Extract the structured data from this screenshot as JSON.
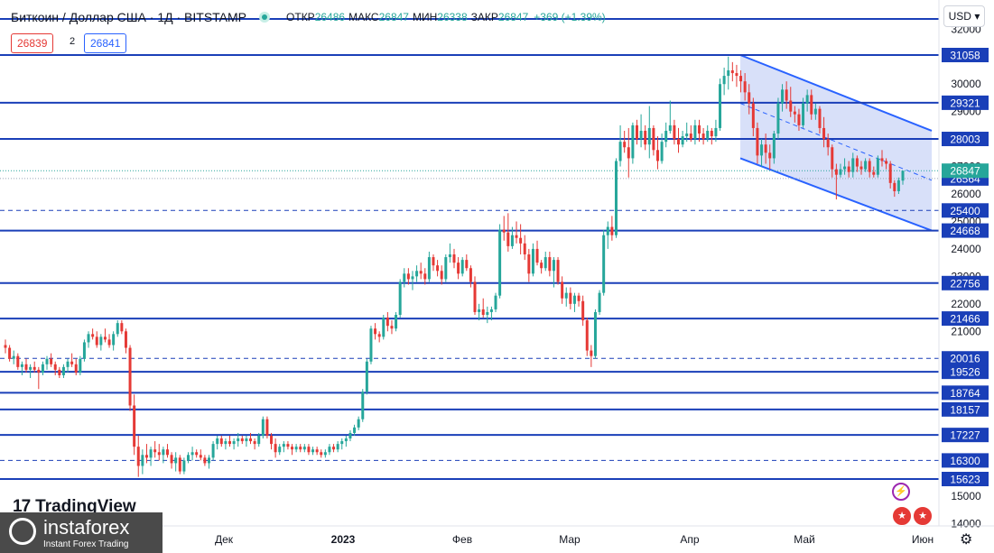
{
  "header": {
    "title": "Биткоин / Доллар США · 1Д · BITSTAMP",
    "open_label": "ОТКР",
    "open": "26486",
    "high_label": "МАКС",
    "high": "26847",
    "low_label": "МИН",
    "low": "26338",
    "close_label": "ЗАКР",
    "close": "26847",
    "change": "+369 (+1.39%)"
  },
  "trade": {
    "sell": "26839",
    "qty": "2",
    "buy": "26841"
  },
  "currency": "USD",
  "branding": {
    "tradingview": "TradingView",
    "instaforex": "instaforex",
    "instaforex_tag": "Instant Forex Trading"
  },
  "colors": {
    "up": "#26a69a",
    "down": "#e53935",
    "level": "#1a3fb8",
    "channel_fill": "#c8d3f7",
    "price_label_bg": "#1a3fb8",
    "current_price_bg": "#26a69a"
  },
  "chart_data": {
    "type": "candlestick",
    "y_axis": {
      "min": 14000,
      "max": 32000,
      "ticks": [
        14000,
        15000,
        20000,
        21000,
        22000,
        23000,
        24000,
        25000,
        26000,
        27000,
        29000,
        30000,
        32000
      ]
    },
    "x_axis": {
      "labels": [
        "Дек",
        "2023",
        "Фев",
        "Мар",
        "Апр",
        "Май",
        "Июн"
      ]
    },
    "current_price": 26847,
    "solid_levels": [
      31058,
      29321,
      28003,
      26564,
      24668,
      22756,
      21466,
      19526,
      18764,
      18157,
      17227,
      15623
    ],
    "dashed_levels": [
      25400,
      20016,
      16300
    ],
    "channel": {
      "upper": [
        31058,
        28300
      ],
      "lower": [
        27300,
        24668
      ],
      "mid": [
        29300,
        26500
      ]
    },
    "ohlc": [
      [
        20500,
        20700,
        20200,
        20400
      ],
      [
        20400,
        20500,
        19900,
        20000
      ],
      [
        20000,
        20300,
        19800,
        20100
      ],
      [
        20100,
        20200,
        19600,
        19700
      ],
      [
        19700,
        19900,
        19400,
        19800
      ],
      [
        19800,
        20000,
        19500,
        19600
      ],
      [
        19600,
        19800,
        19300,
        19700
      ],
      [
        19700,
        19900,
        19500,
        19600
      ],
      [
        19600,
        19700,
        18900,
        19500
      ],
      [
        19500,
        19900,
        19400,
        19800
      ],
      [
        19800,
        20100,
        19600,
        20000
      ],
      [
        20000,
        20200,
        19700,
        19800
      ],
      [
        19800,
        19900,
        19400,
        19600
      ],
      [
        19600,
        19700,
        19300,
        19400
      ],
      [
        19400,
        19800,
        19300,
        19700
      ],
      [
        19700,
        20000,
        19500,
        19900
      ],
      [
        19900,
        20200,
        19700,
        19800
      ],
      [
        19800,
        20000,
        19400,
        19500
      ],
      [
        19500,
        20100,
        19400,
        20000
      ],
      [
        20000,
        20700,
        19900,
        20600
      ],
      [
        20600,
        21000,
        20400,
        20900
      ],
      [
        20900,
        21100,
        20700,
        20800
      ],
      [
        20800,
        21000,
        20400,
        20500
      ],
      [
        20500,
        20900,
        20300,
        20800
      ],
      [
        20800,
        21100,
        20600,
        20700
      ],
      [
        20700,
        20900,
        20400,
        20500
      ],
      [
        20500,
        21000,
        20300,
        20900
      ],
      [
        20900,
        21400,
        20800,
        21300
      ],
      [
        21300,
        21400,
        20900,
        21000
      ],
      [
        21000,
        21100,
        20200,
        20400
      ],
      [
        20400,
        20500,
        18100,
        18300
      ],
      [
        18300,
        18700,
        16500,
        16800
      ],
      [
        16800,
        17200,
        15700,
        16100
      ],
      [
        16100,
        16700,
        15800,
        16500
      ],
      [
        16500,
        16900,
        16200,
        16400
      ],
      [
        16400,
        16800,
        16100,
        16700
      ],
      [
        16700,
        17000,
        16400,
        16600
      ],
      [
        16600,
        16900,
        16300,
        16500
      ],
      [
        16500,
        16800,
        16200,
        16700
      ],
      [
        16700,
        16900,
        16400,
        16500
      ],
      [
        16500,
        16600,
        16000,
        16200
      ],
      [
        16200,
        16600,
        15900,
        16400
      ],
      [
        16400,
        16500,
        15800,
        15900
      ],
      [
        15900,
        16400,
        15800,
        16300
      ],
      [
        16300,
        16600,
        16200,
        16500
      ],
      [
        16500,
        16800,
        16300,
        16600
      ],
      [
        16600,
        16700,
        16400,
        16500
      ],
      [
        16500,
        16700,
        16300,
        16400
      ],
      [
        16400,
        16500,
        16100,
        16200
      ],
      [
        16200,
        16500,
        16000,
        16400
      ],
      [
        16400,
        17000,
        16300,
        16900
      ],
      [
        16900,
        17200,
        16700,
        17100
      ],
      [
        17100,
        17200,
        16800,
        16900
      ],
      [
        16900,
        17100,
        16700,
        17000
      ],
      [
        17000,
        17200,
        16800,
        16900
      ],
      [
        16900,
        17100,
        16700,
        17000
      ],
      [
        17000,
        17300,
        16800,
        17100
      ],
      [
        17100,
        17200,
        16900,
        17000
      ],
      [
        17000,
        17200,
        16800,
        17100
      ],
      [
        17100,
        17300,
        16900,
        17000
      ],
      [
        17000,
        17100,
        16700,
        16900
      ],
      [
        16900,
        17300,
        16800,
        17200
      ],
      [
        17200,
        17900,
        17100,
        17800
      ],
      [
        17800,
        17900,
        17100,
        17200
      ],
      [
        17200,
        17300,
        16700,
        16900
      ],
      [
        16900,
        17100,
        16400,
        16600
      ],
      [
        16600,
        16900,
        16500,
        16800
      ],
      [
        16800,
        17000,
        16600,
        16900
      ],
      [
        16900,
        17000,
        16700,
        16800
      ],
      [
        16800,
        16900,
        16500,
        16700
      ],
      [
        16700,
        16900,
        16600,
        16800
      ],
      [
        16800,
        16900,
        16600,
        16700
      ],
      [
        16700,
        16900,
        16600,
        16800
      ],
      [
        16800,
        16900,
        16500,
        16600
      ],
      [
        16600,
        16800,
        16500,
        16700
      ],
      [
        16700,
        16800,
        16500,
        16600
      ],
      [
        16600,
        16700,
        16400,
        16500
      ],
      [
        16500,
        16700,
        16400,
        16600
      ],
      [
        16600,
        16900,
        16500,
        16800
      ],
      [
        16800,
        16900,
        16600,
        16700
      ],
      [
        16700,
        17000,
        16600,
        16900
      ],
      [
        16900,
        17100,
        16700,
        17000
      ],
      [
        17000,
        17200,
        16800,
        17100
      ],
      [
        17100,
        17400,
        17000,
        17300
      ],
      [
        17300,
        17600,
        17200,
        17500
      ],
      [
        17500,
        17900,
        17400,
        17800
      ],
      [
        17800,
        18900,
        17700,
        18800
      ],
      [
        18800,
        20000,
        18700,
        19900
      ],
      [
        19900,
        21200,
        19800,
        21100
      ],
      [
        21100,
        21300,
        20700,
        20900
      ],
      [
        20900,
        21000,
        20600,
        20800
      ],
      [
        20800,
        21600,
        20700,
        21500
      ],
      [
        21500,
        21700,
        21000,
        21200
      ],
      [
        21200,
        21400,
        20900,
        21100
      ],
      [
        21100,
        21700,
        21000,
        21600
      ],
      [
        21600,
        22900,
        21500,
        22800
      ],
      [
        22800,
        23300,
        22600,
        23100
      ],
      [
        23100,
        23300,
        22700,
        22900
      ],
      [
        22900,
        23200,
        22500,
        23000
      ],
      [
        23000,
        23400,
        22800,
        23200
      ],
      [
        23200,
        23500,
        22900,
        23100
      ],
      [
        23100,
        23300,
        22700,
        22900
      ],
      [
        22900,
        23900,
        22800,
        23700
      ],
      [
        23700,
        23800,
        23200,
        23400
      ],
      [
        23400,
        23600,
        23000,
        23200
      ],
      [
        23200,
        23400,
        22700,
        22900
      ],
      [
        22900,
        23800,
        22800,
        23700
      ],
      [
        23700,
        24200,
        23500,
        23800
      ],
      [
        23800,
        24000,
        23300,
        23500
      ],
      [
        23500,
        23700,
        22900,
        23100
      ],
      [
        23100,
        23700,
        23000,
        23600
      ],
      [
        23600,
        23800,
        23200,
        23300
      ],
      [
        23300,
        23400,
        22600,
        22800
      ],
      [
        22800,
        23000,
        21600,
        21700
      ],
      [
        21700,
        22000,
        21400,
        21800
      ],
      [
        21800,
        22200,
        21500,
        21600
      ],
      [
        21600,
        21900,
        21300,
        21700
      ],
      [
        21700,
        21900,
        21400,
        21800
      ],
      [
        21800,
        22400,
        21700,
        22300
      ],
      [
        22300,
        24900,
        22200,
        24700
      ],
      [
        24700,
        25200,
        24300,
        24600
      ],
      [
        24600,
        25300,
        23900,
        24100
      ],
      [
        24100,
        24800,
        24000,
        24500
      ],
      [
        24500,
        25000,
        24200,
        24400
      ],
      [
        24400,
        24900,
        23800,
        24200
      ],
      [
        24200,
        24500,
        23600,
        23800
      ],
      [
        23800,
        24000,
        22800,
        23100
      ],
      [
        23100,
        24200,
        23000,
        24000
      ],
      [
        24000,
        24300,
        23400,
        23500
      ],
      [
        23500,
        23600,
        23100,
        23300
      ],
      [
        23300,
        23900,
        23200,
        23700
      ],
      [
        23700,
        23900,
        23000,
        23200
      ],
      [
        23200,
        23700,
        22600,
        23600
      ],
      [
        23600,
        23700,
        22700,
        22800
      ],
      [
        22800,
        23000,
        22000,
        22200
      ],
      [
        22200,
        22600,
        21900,
        22400
      ],
      [
        22400,
        22600,
        21800,
        22000
      ],
      [
        22000,
        22400,
        21700,
        22300
      ],
      [
        22300,
        22400,
        21900,
        22100
      ],
      [
        22100,
        22300,
        21200,
        21400
      ],
      [
        21400,
        21500,
        20100,
        20300
      ],
      [
        20300,
        20500,
        19700,
        20100
      ],
      [
        20100,
        21800,
        20000,
        21700
      ],
      [
        21700,
        22500,
        21600,
        22400
      ],
      [
        22400,
        24700,
        22300,
        24500
      ],
      [
        24500,
        25000,
        24000,
        24800
      ],
      [
        24800,
        25200,
        24300,
        24500
      ],
      [
        24500,
        27300,
        24400,
        27200
      ],
      [
        27200,
        28500,
        27000,
        27900
      ],
      [
        27900,
        28300,
        27500,
        27700
      ],
      [
        27700,
        28400,
        26600,
        27300
      ],
      [
        27300,
        28600,
        27100,
        28500
      ],
      [
        28500,
        28700,
        27800,
        28000
      ],
      [
        28000,
        28900,
        27700,
        28300
      ],
      [
        28300,
        28500,
        27600,
        27800
      ],
      [
        27800,
        29200,
        27300,
        28400
      ],
      [
        28400,
        28500,
        27400,
        27600
      ],
      [
        27600,
        28100,
        26900,
        27200
      ],
      [
        27200,
        28200,
        27100,
        27900
      ],
      [
        27900,
        28600,
        27700,
        28300
      ],
      [
        28300,
        29400,
        28200,
        28500
      ],
      [
        28500,
        28700,
        27800,
        28000
      ],
      [
        28000,
        28400,
        27500,
        27800
      ],
      [
        27800,
        28300,
        27700,
        28100
      ],
      [
        28100,
        28600,
        27900,
        28200
      ],
      [
        28200,
        28500,
        27900,
        28000
      ],
      [
        28000,
        28700,
        27800,
        28500
      ],
      [
        28500,
        28700,
        27900,
        28200
      ],
      [
        28200,
        28400,
        27800,
        28000
      ],
      [
        28000,
        28500,
        27900,
        28300
      ],
      [
        28300,
        28400,
        27800,
        28100
      ],
      [
        28100,
        28700,
        27900,
        28400
      ],
      [
        28400,
        30200,
        28300,
        30000
      ],
      [
        30000,
        30600,
        29600,
        30300
      ],
      [
        30300,
        31000,
        29800,
        30500
      ],
      [
        30500,
        30800,
        30100,
        30400
      ],
      [
        30400,
        30700,
        29900,
        30300
      ],
      [
        30300,
        30500,
        29700,
        30100
      ],
      [
        30100,
        30400,
        29400,
        29700
      ],
      [
        29700,
        30000,
        28900,
        29300
      ],
      [
        29300,
        29500,
        28100,
        28400
      ],
      [
        28400,
        28600,
        27100,
        27400
      ],
      [
        27400,
        28000,
        27000,
        27800
      ],
      [
        27800,
        28200,
        27100,
        27500
      ],
      [
        27500,
        27800,
        26900,
        27300
      ],
      [
        27300,
        28300,
        27100,
        28200
      ],
      [
        28200,
        29500,
        28000,
        29300
      ],
      [
        29300,
        30000,
        29000,
        29800
      ],
      [
        29800,
        30100,
        29100,
        29400
      ],
      [
        29400,
        29900,
        28800,
        29000
      ],
      [
        29000,
        29200,
        28600,
        28900
      ],
      [
        28900,
        29100,
        28300,
        28500
      ],
      [
        28500,
        29500,
        28400,
        29300
      ],
      [
        29300,
        29800,
        29000,
        29600
      ],
      [
        29600,
        29800,
        28700,
        28900
      ],
      [
        28900,
        29300,
        28700,
        29100
      ],
      [
        29100,
        29200,
        28200,
        28400
      ],
      [
        28400,
        28800,
        27700,
        28000
      ],
      [
        28000,
        28200,
        27400,
        27700
      ],
      [
        27700,
        27800,
        26600,
        26900
      ],
      [
        26900,
        27100,
        25800,
        26700
      ],
      [
        26700,
        27100,
        26600,
        26900
      ],
      [
        26900,
        27300,
        26700,
        27000
      ],
      [
        27000,
        27200,
        26600,
        26800
      ],
      [
        26800,
        27500,
        26600,
        27300
      ],
      [
        27300,
        27400,
        26800,
        27000
      ],
      [
        27000,
        27200,
        26700,
        26900
      ],
      [
        26900,
        27300,
        26800,
        27200
      ],
      [
        27200,
        27300,
        26600,
        26800
      ],
      [
        26800,
        27000,
        26600,
        26700
      ],
      [
        26700,
        27400,
        26600,
        27300
      ],
      [
        27300,
        27600,
        27000,
        27200
      ],
      [
        27200,
        27300,
        26900,
        27100
      ],
      [
        27100,
        27200,
        26200,
        26400
      ],
      [
        26400,
        26500,
        25900,
        26100
      ],
      [
        26100,
        26600,
        26000,
        26500
      ],
      [
        26486,
        26847,
        26338,
        26847
      ]
    ]
  }
}
